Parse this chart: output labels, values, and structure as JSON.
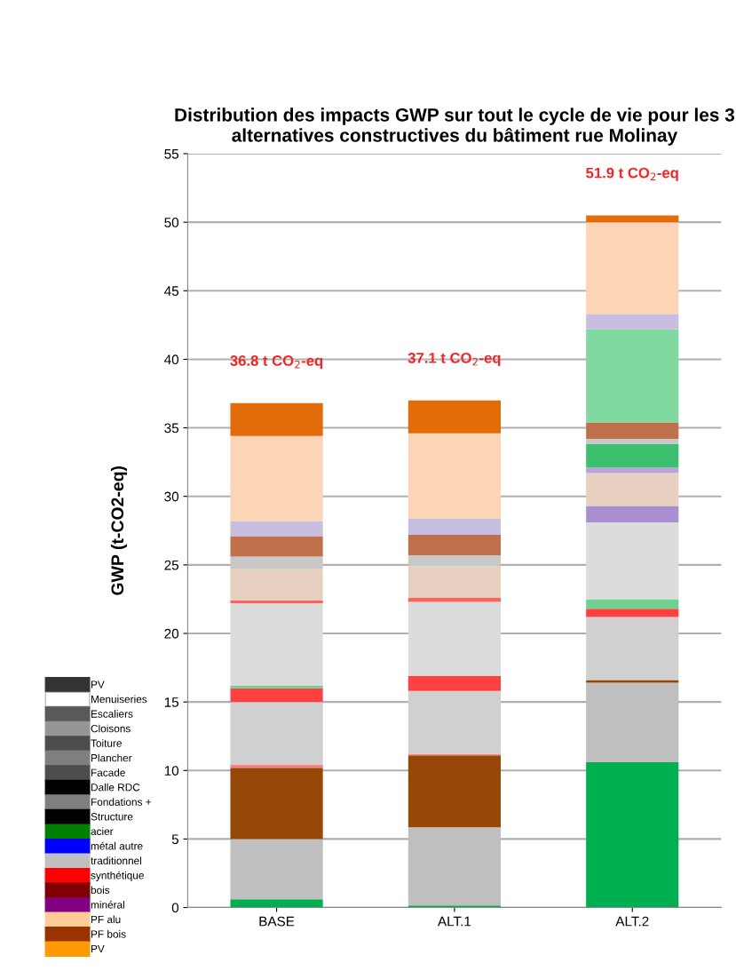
{
  "chart_data": {
    "type": "bar",
    "stacked": true,
    "title": "Distribution des impacts GWP sur tout le cycle de vie pour les 3 alternatives constructives du bâtiment rue Molinay",
    "ylabel": "GWP (t-CO2-eq)",
    "categories": [
      "BASE",
      "ALT.1",
      "ALT.2"
    ],
    "ylim": [
      0,
      55
    ],
    "yticks": [
      0,
      5,
      10,
      15,
      20,
      25,
      30,
      35,
      40,
      45,
      50,
      55
    ],
    "grid": "y",
    "legend": "left",
    "totals": [
      "36.8 t CO$_{2}$-eq",
      "37.1 t CO$_{2}$-eq",
      "51.9 t CO$_{2}$-eq"
    ],
    "series": [
      {
        "color": "#00b050",
        "values": [
          0.6,
          0.15,
          10.6
        ]
      },
      {
        "color": "#bfbfbf",
        "values": [
          4.4,
          5.7,
          5.8
        ]
      },
      {
        "color": "#974806",
        "values": [
          5.2,
          5.25,
          0.2
        ]
      },
      {
        "color": "#ff8080",
        "values": [
          0.2,
          0.1,
          null
        ]
      },
      {
        "color": "#d0d0d0",
        "values": [
          4.6,
          4.6,
          4.6
        ]
      },
      {
        "color": "#ff4040",
        "values": [
          1.0,
          1.1,
          0.6
        ]
      },
      {
        "color": "#70d090",
        "values": [
          0.2,
          null,
          0.7
        ]
      },
      {
        "color": "#dcdcdc",
        "values": [
          6.0,
          5.4,
          5.6
        ]
      },
      {
        "color": "#ff6060",
        "values": [
          0.2,
          0.3,
          null
        ]
      },
      {
        "color": "#a98fcf",
        "values": [
          null,
          null,
          1.2
        ]
      },
      {
        "color": "#e8d0c0",
        "values": [
          2.3,
          2.3,
          2.4
        ]
      },
      {
        "color": "#b7a3d8",
        "values": [
          null,
          null,
          0.4
        ]
      },
      {
        "color": "#3cc070",
        "values": [
          null,
          null,
          1.7
        ]
      },
      {
        "color": "#c8c8c8",
        "values": [
          0.9,
          0.8,
          0.4
        ]
      },
      {
        "color": "#c0704a",
        "values": [
          1.5,
          1.5,
          1.2
        ]
      },
      {
        "color": "#7fd9a0",
        "values": [
          null,
          null,
          6.8
        ]
      },
      {
        "color": "#c8bedf",
        "values": [
          1.1,
          1.2,
          1.1
        ]
      },
      {
        "color": "#fbd5b5",
        "values": [
          6.2,
          6.2,
          6.7
        ]
      },
      {
        "color": "#e36c09",
        "values": [
          2.4,
          2.4,
          0.5
        ]
      },
      {
        "name": "PV",
        "color": "#333333",
        "values": [
          null,
          null,
          null
        ]
      },
      {
        "name": "Menuiseries",
        "color": "#ffffff",
        "values": [
          null,
          null,
          null
        ]
      },
      {
        "name": "Escaliers",
        "color": "#595959",
        "values": [
          null,
          null,
          null
        ]
      },
      {
        "name": "Cloisons",
        "color": "#969696",
        "values": [
          null,
          null,
          null
        ]
      },
      {
        "name": "Toiture",
        "color": "#4d4d4d",
        "values": [
          null,
          null,
          null
        ]
      },
      {
        "name": "Plancher",
        "color": "#7f7f7f",
        "values": [
          null,
          null,
          null
        ]
      },
      {
        "name": "Facade",
        "color": "#4d4d4d",
        "values": [
          null,
          null,
          null
        ]
      },
      {
        "name": "Dalle RDC",
        "color": "#000000",
        "values": [
          null,
          null,
          null
        ]
      },
      {
        "name": "Fondations +",
        "color": "#7f7f7f",
        "values": [
          null,
          null,
          null
        ]
      },
      {
        "name": "Structure",
        "color": "#000000",
        "values": [
          null,
          null,
          null
        ]
      },
      {
        "name": "acier",
        "color": "#008000",
        "values": [
          null,
          null,
          null
        ]
      },
      {
        "name": "métal autre",
        "color": "#0000ff",
        "values": [
          null,
          null,
          null
        ]
      },
      {
        "name": "traditionnel",
        "color": "#c0c0c0",
        "values": [
          null,
          null,
          null
        ]
      },
      {
        "name": "synthétique",
        "color": "#ff0000",
        "values": [
          null,
          null,
          null
        ]
      },
      {
        "name": "bois",
        "color": "#800000",
        "values": [
          null,
          null,
          null
        ]
      },
      {
        "name": "minéral",
        "color": "#800080",
        "values": [
          null,
          null,
          null
        ]
      },
      {
        "name": "PF alu",
        "color": "#ffcc99",
        "values": [
          null,
          null,
          null
        ]
      },
      {
        "name": "PF bois",
        "color": "#993300",
        "values": [
          null,
          null,
          null
        ]
      },
      {
        "name": "PV",
        "color": "#ff9900",
        "values": [
          null,
          null,
          null
        ]
      }
    ]
  }
}
